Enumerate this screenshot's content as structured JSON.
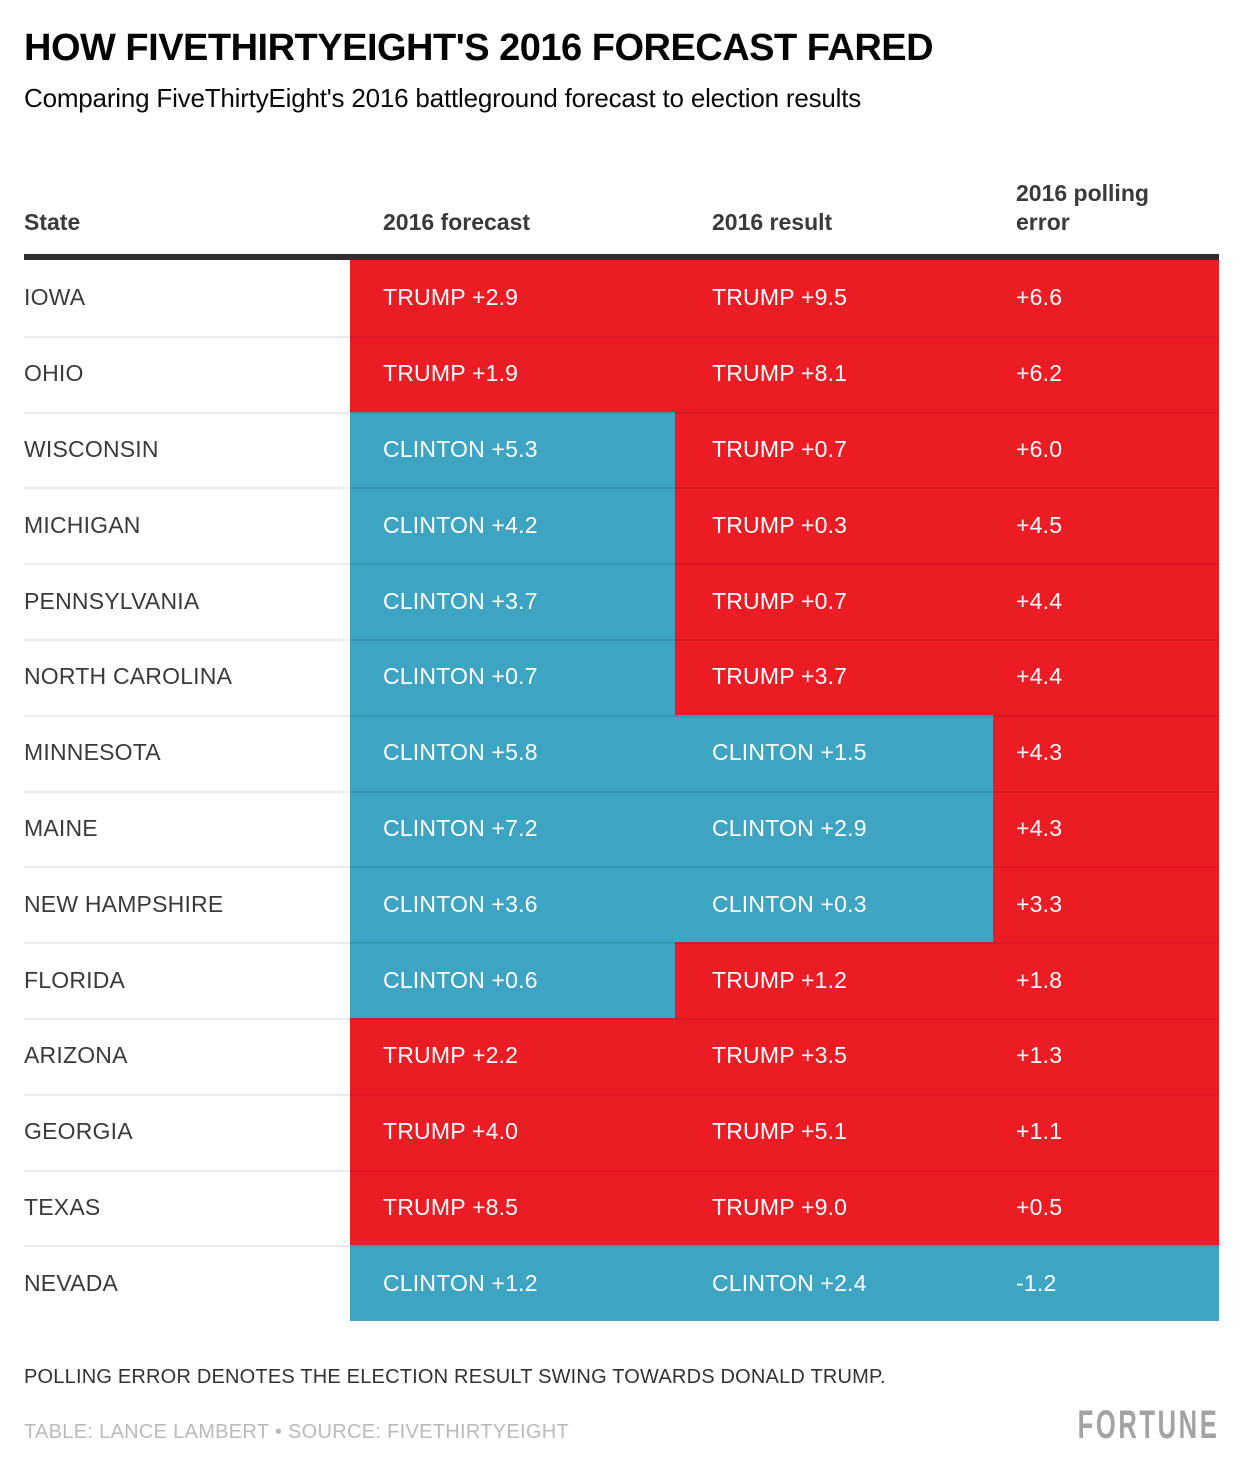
{
  "chart_data": {
    "type": "table",
    "title": "HOW FIVETHIRTYEIGHT'S 2016 FORECAST FARED",
    "subtitle": "Comparing FiveThirtyEight's 2016 battleground forecast to election results",
    "columns": [
      "State",
      "2016 forecast",
      "2016 result",
      "2016 polling error"
    ],
    "party_colors": {
      "trump": "#EC1C24",
      "clinton": "#3DA5C2"
    },
    "rows": [
      {
        "state": "IOWA",
        "forecast": "TRUMP +2.9",
        "forecast_party": "trump",
        "result": "TRUMP +9.5",
        "result_party": "trump",
        "polling_error": "+6.6",
        "polling_error_party": "trump"
      },
      {
        "state": "OHIO",
        "forecast": "TRUMP +1.9",
        "forecast_party": "trump",
        "result": "TRUMP +8.1",
        "result_party": "trump",
        "polling_error": "+6.2",
        "polling_error_party": "trump"
      },
      {
        "state": "WISCONSIN",
        "forecast": "CLINTON +5.3",
        "forecast_party": "clinton",
        "result": "TRUMP +0.7",
        "result_party": "trump",
        "polling_error": "+6.0",
        "polling_error_party": "trump"
      },
      {
        "state": "MICHIGAN",
        "forecast": "CLINTON +4.2",
        "forecast_party": "clinton",
        "result": "TRUMP +0.3",
        "result_party": "trump",
        "polling_error": "+4.5",
        "polling_error_party": "trump"
      },
      {
        "state": "PENNSYLVANIA",
        "forecast": "CLINTON +3.7",
        "forecast_party": "clinton",
        "result": "TRUMP +0.7",
        "result_party": "trump",
        "polling_error": "+4.4",
        "polling_error_party": "trump"
      },
      {
        "state": "NORTH CAROLINA",
        "forecast": "CLINTON +0.7",
        "forecast_party": "clinton",
        "result": "TRUMP +3.7",
        "result_party": "trump",
        "polling_error": "+4.4",
        "polling_error_party": "trump"
      },
      {
        "state": "MINNESOTA",
        "forecast": "CLINTON +5.8",
        "forecast_party": "clinton",
        "result": "CLINTON +1.5",
        "result_party": "clinton",
        "polling_error": "+4.3",
        "polling_error_party": "trump"
      },
      {
        "state": "MAINE",
        "forecast": "CLINTON +7.2",
        "forecast_party": "clinton",
        "result": "CLINTON +2.9",
        "result_party": "clinton",
        "polling_error": "+4.3",
        "polling_error_party": "trump"
      },
      {
        "state": "NEW HAMPSHIRE",
        "forecast": "CLINTON +3.6",
        "forecast_party": "clinton",
        "result": "CLINTON +0.3",
        "result_party": "clinton",
        "polling_error": "+3.3",
        "polling_error_party": "trump"
      },
      {
        "state": "FLORIDA",
        "forecast": "CLINTON +0.6",
        "forecast_party": "clinton",
        "result": "TRUMP +1.2",
        "result_party": "trump",
        "polling_error": "+1.8",
        "polling_error_party": "trump"
      },
      {
        "state": "ARIZONA",
        "forecast": "TRUMP +2.2",
        "forecast_party": "trump",
        "result": "TRUMP +3.5",
        "result_party": "trump",
        "polling_error": "+1.3",
        "polling_error_party": "trump"
      },
      {
        "state": "GEORGIA",
        "forecast": "TRUMP +4.0",
        "forecast_party": "trump",
        "result": "TRUMP +5.1",
        "result_party": "trump",
        "polling_error": "+1.1",
        "polling_error_party": "trump"
      },
      {
        "state": "TEXAS",
        "forecast": "TRUMP +8.5",
        "forecast_party": "trump",
        "result": "TRUMP +9.0",
        "result_party": "trump",
        "polling_error": "+0.5",
        "polling_error_party": "trump"
      },
      {
        "state": "NEVADA",
        "forecast": "CLINTON +1.2",
        "forecast_party": "clinton",
        "result": "CLINTON +2.4",
        "result_party": "clinton",
        "polling_error": "-1.2",
        "polling_error_party": "clinton"
      }
    ],
    "polling_error_values": [
      6.6,
      6.2,
      6.0,
      4.5,
      4.4,
      4.4,
      4.3,
      4.3,
      3.3,
      1.8,
      1.3,
      1.1,
      0.5,
      -1.2
    ],
    "footnote": "POLLING ERROR DENOTES THE ELECTION RESULT SWING TOWARDS DONALD TRUMP.",
    "credit": "TABLE: LANCE LAMBERT • SOURCE: FIVETHIRTYEIGHT",
    "brand": "FORTUNE"
  }
}
